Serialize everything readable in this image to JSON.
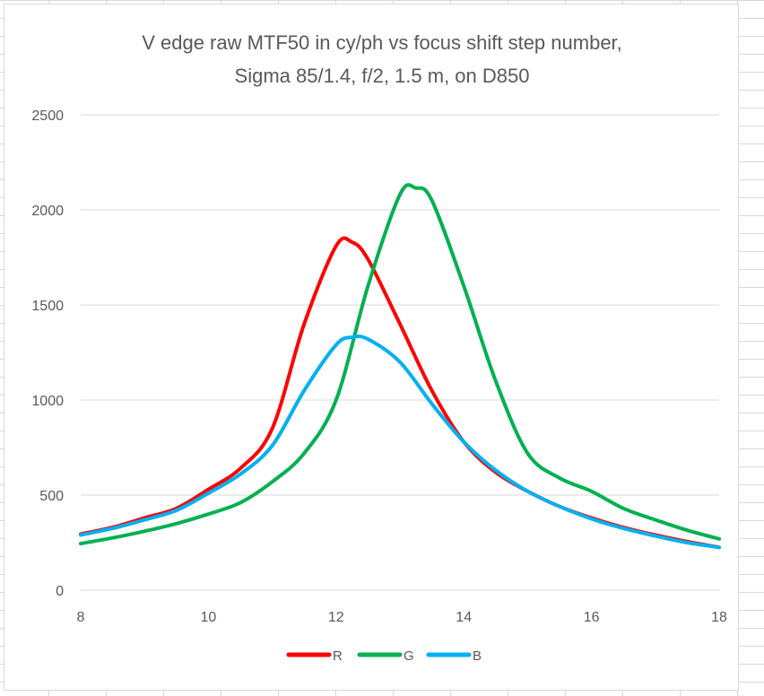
{
  "chart_data": {
    "type": "line",
    "title_lines": [
      "V edge raw MTF50 in cy/ph vs focus shift step number,",
      "Sigma 85/1.4, f/2, 1.5 m, on D850"
    ],
    "xlabel": "",
    "ylabel": "",
    "xlim": [
      8,
      18
    ],
    "ylim": [
      0,
      2500
    ],
    "x_ticks": [
      "8",
      "10",
      "12",
      "14",
      "16",
      "18"
    ],
    "y_ticks": [
      "0",
      "500",
      "1000",
      "1500",
      "2000",
      "2500"
    ],
    "grid": "horizontal",
    "legend_position": "bottom",
    "series": [
      {
        "name": "R",
        "color": "#ff0000",
        "x": [
          8,
          8.5,
          9,
          9.5,
          10,
          10.5,
          11,
          11.5,
          12,
          12.25,
          12.5,
          13,
          13.5,
          14,
          14.5,
          15,
          15.5,
          16,
          16.5,
          17,
          17.5,
          18
        ],
        "y": [
          295,
          330,
          380,
          430,
          530,
          640,
          850,
          1400,
          1810,
          1830,
          1740,
          1400,
          1050,
          780,
          620,
          520,
          440,
          380,
          330,
          290,
          255,
          225
        ]
      },
      {
        "name": "G",
        "color": "#00b050",
        "x": [
          8,
          8.5,
          9,
          9.5,
          10,
          10.5,
          11,
          11.5,
          12,
          12.5,
          13,
          13.25,
          13.5,
          14,
          14.5,
          15,
          15.5,
          16,
          16.5,
          17,
          17.5,
          18
        ],
        "y": [
          245,
          275,
          310,
          350,
          400,
          460,
          570,
          720,
          1000,
          1600,
          2080,
          2115,
          2050,
          1600,
          1100,
          720,
          590,
          520,
          430,
          370,
          315,
          270
        ]
      },
      {
        "name": "B",
        "color": "#00b0f0",
        "x": [
          8,
          8.5,
          9,
          9.5,
          10,
          10.5,
          11,
          11.5,
          12,
          12.25,
          12.5,
          13,
          13.5,
          14,
          14.5,
          15,
          15.5,
          16,
          16.5,
          17,
          17.5,
          18
        ],
        "y": [
          290,
          325,
          370,
          420,
          510,
          610,
          760,
          1050,
          1290,
          1330,
          1320,
          1200,
          980,
          780,
          630,
          520,
          440,
          375,
          325,
          285,
          250,
          225
        ]
      }
    ]
  }
}
